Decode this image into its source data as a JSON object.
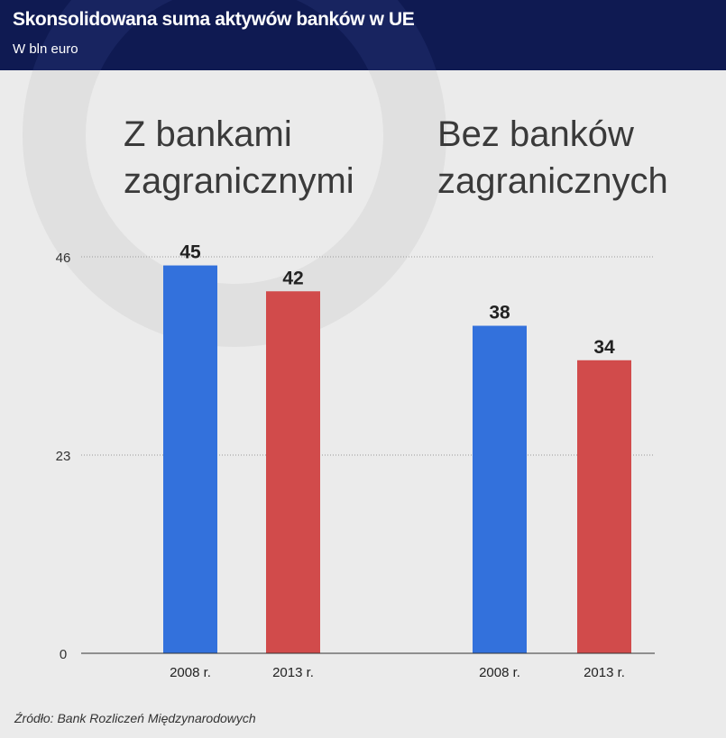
{
  "header": {
    "title": "Skonsolidowana suma aktywów banków w UE",
    "subtitle": "W bln euro"
  },
  "colors": {
    "header_bg": "#0f1a52",
    "series_2008": "#3371dc",
    "series_2013": "#d14b4b"
  },
  "chart_data": {
    "type": "bar",
    "title": "Skonsolidowana suma aktywów banków w UE",
    "subtitle": "W bln euro",
    "ylim": [
      0,
      46
    ],
    "yticks": [
      "0",
      "23",
      "46"
    ],
    "groups": [
      {
        "title": [
          "Z bankami",
          "zagranicznymi"
        ],
        "bars": [
          {
            "label": "2008 r.",
            "value": 45,
            "color": "#3371dc"
          },
          {
            "label": "2013 r.",
            "value": 42,
            "color": "#d14b4b"
          }
        ]
      },
      {
        "title": [
          "Bez banków",
          "zagranicznych"
        ],
        "bars": [
          {
            "label": "2008 r.",
            "value": 38,
            "color": "#3371dc"
          },
          {
            "label": "2013 r.",
            "value": 34,
            "color": "#d14b4b"
          }
        ]
      }
    ]
  },
  "footer": {
    "source": "Źródło: Bank Rozliczeń Międzynarodowych"
  }
}
